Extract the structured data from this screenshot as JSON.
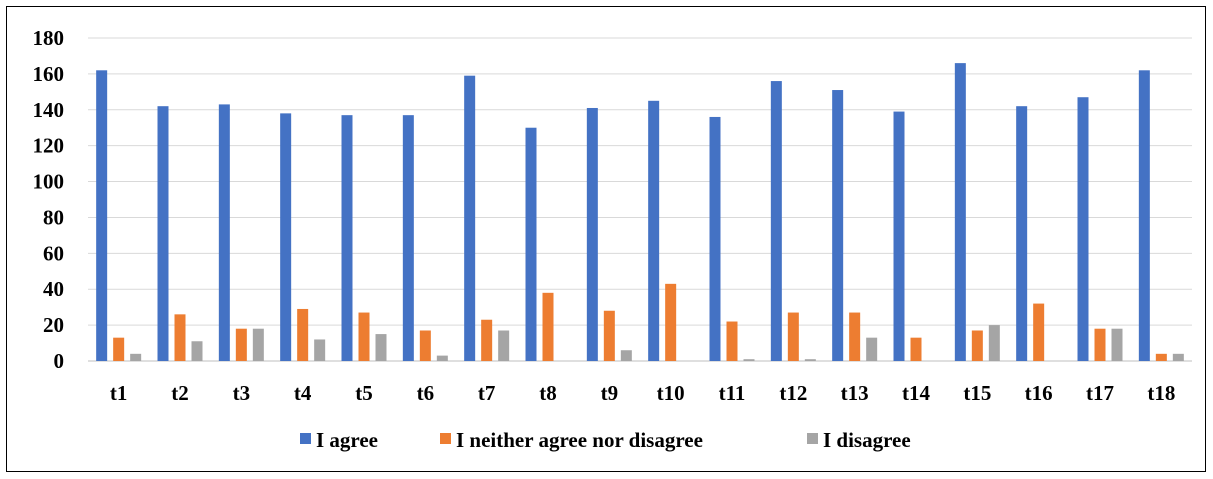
{
  "chart_data": {
    "type": "bar",
    "categories": [
      "t1",
      "t2",
      "t3",
      "t4",
      "t5",
      "t6",
      "t7",
      "t8",
      "t9",
      "t10",
      "t11",
      "t12",
      "t13",
      "t14",
      "t15",
      "t16",
      "t17",
      "t18"
    ],
    "series": [
      {
        "name": "I agree",
        "color": "#4472C4",
        "values": [
          162,
          142,
          143,
          138,
          137,
          137,
          159,
          130,
          141,
          145,
          136,
          156,
          151,
          139,
          166,
          142,
          147,
          162
        ]
      },
      {
        "name": "I neither agree nor disagree",
        "color": "#ED7D31",
        "values": [
          13,
          26,
          18,
          29,
          27,
          17,
          23,
          38,
          28,
          43,
          22,
          27,
          27,
          13,
          17,
          32,
          18,
          4
        ]
      },
      {
        "name": "I disagree",
        "color": "#A5A5A5",
        "values": [
          4,
          11,
          18,
          12,
          15,
          3,
          17,
          0,
          6,
          0,
          1,
          1,
          13,
          0,
          20,
          0,
          18,
          4
        ]
      }
    ],
    "ylim": [
      0,
      180
    ],
    "yticks": [
      0,
      20,
      40,
      60,
      80,
      100,
      120,
      140,
      160,
      180
    ],
    "grid": true,
    "legend": "bottom"
  }
}
